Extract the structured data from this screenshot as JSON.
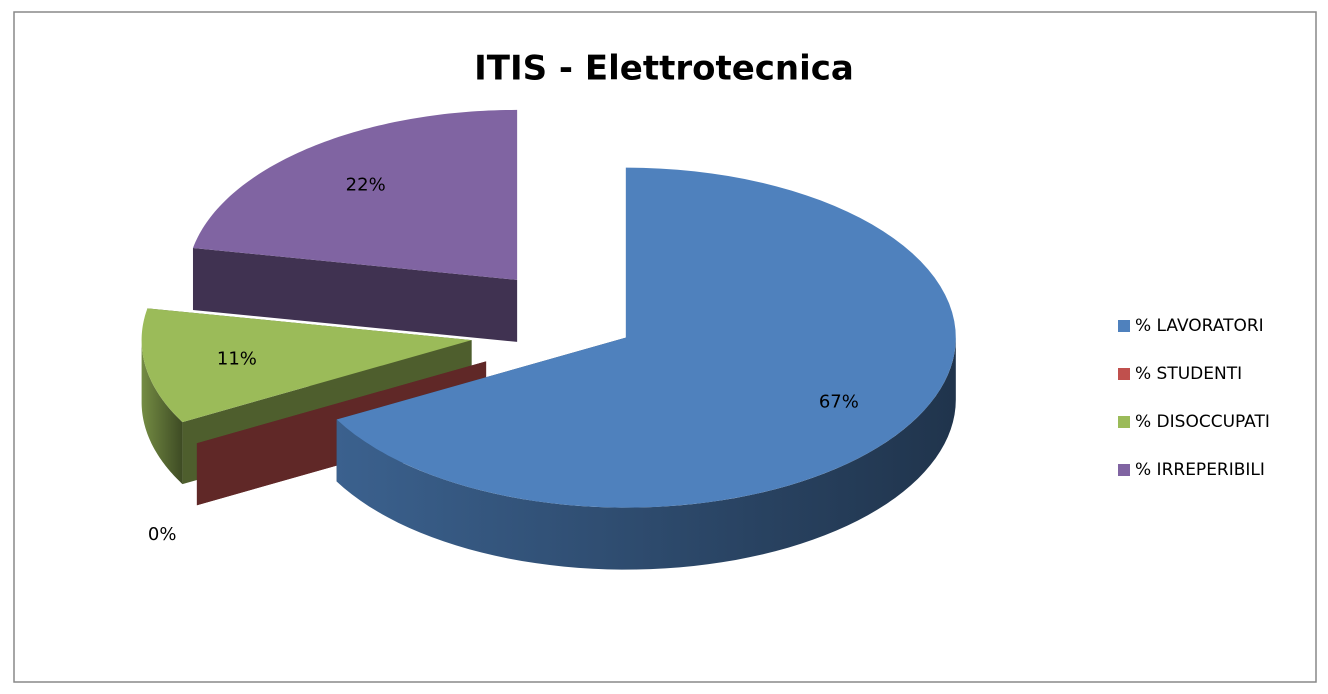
{
  "chart_data": {
    "type": "pie",
    "title": "ITIS - Elettrotecnica",
    "categories": [
      "% LAVORATORI",
      "% STUDENTI",
      "% DISOCCUPATI",
      "% IRREPERIBILI"
    ],
    "values": [
      67,
      0,
      11,
      22
    ],
    "value_labels": [
      "67%",
      "0%",
      "11%",
      "22%"
    ],
    "colors": [
      "#4f81bd",
      "#c0504d",
      "#9bbb59",
      "#8064a2"
    ],
    "legend": "right"
  }
}
